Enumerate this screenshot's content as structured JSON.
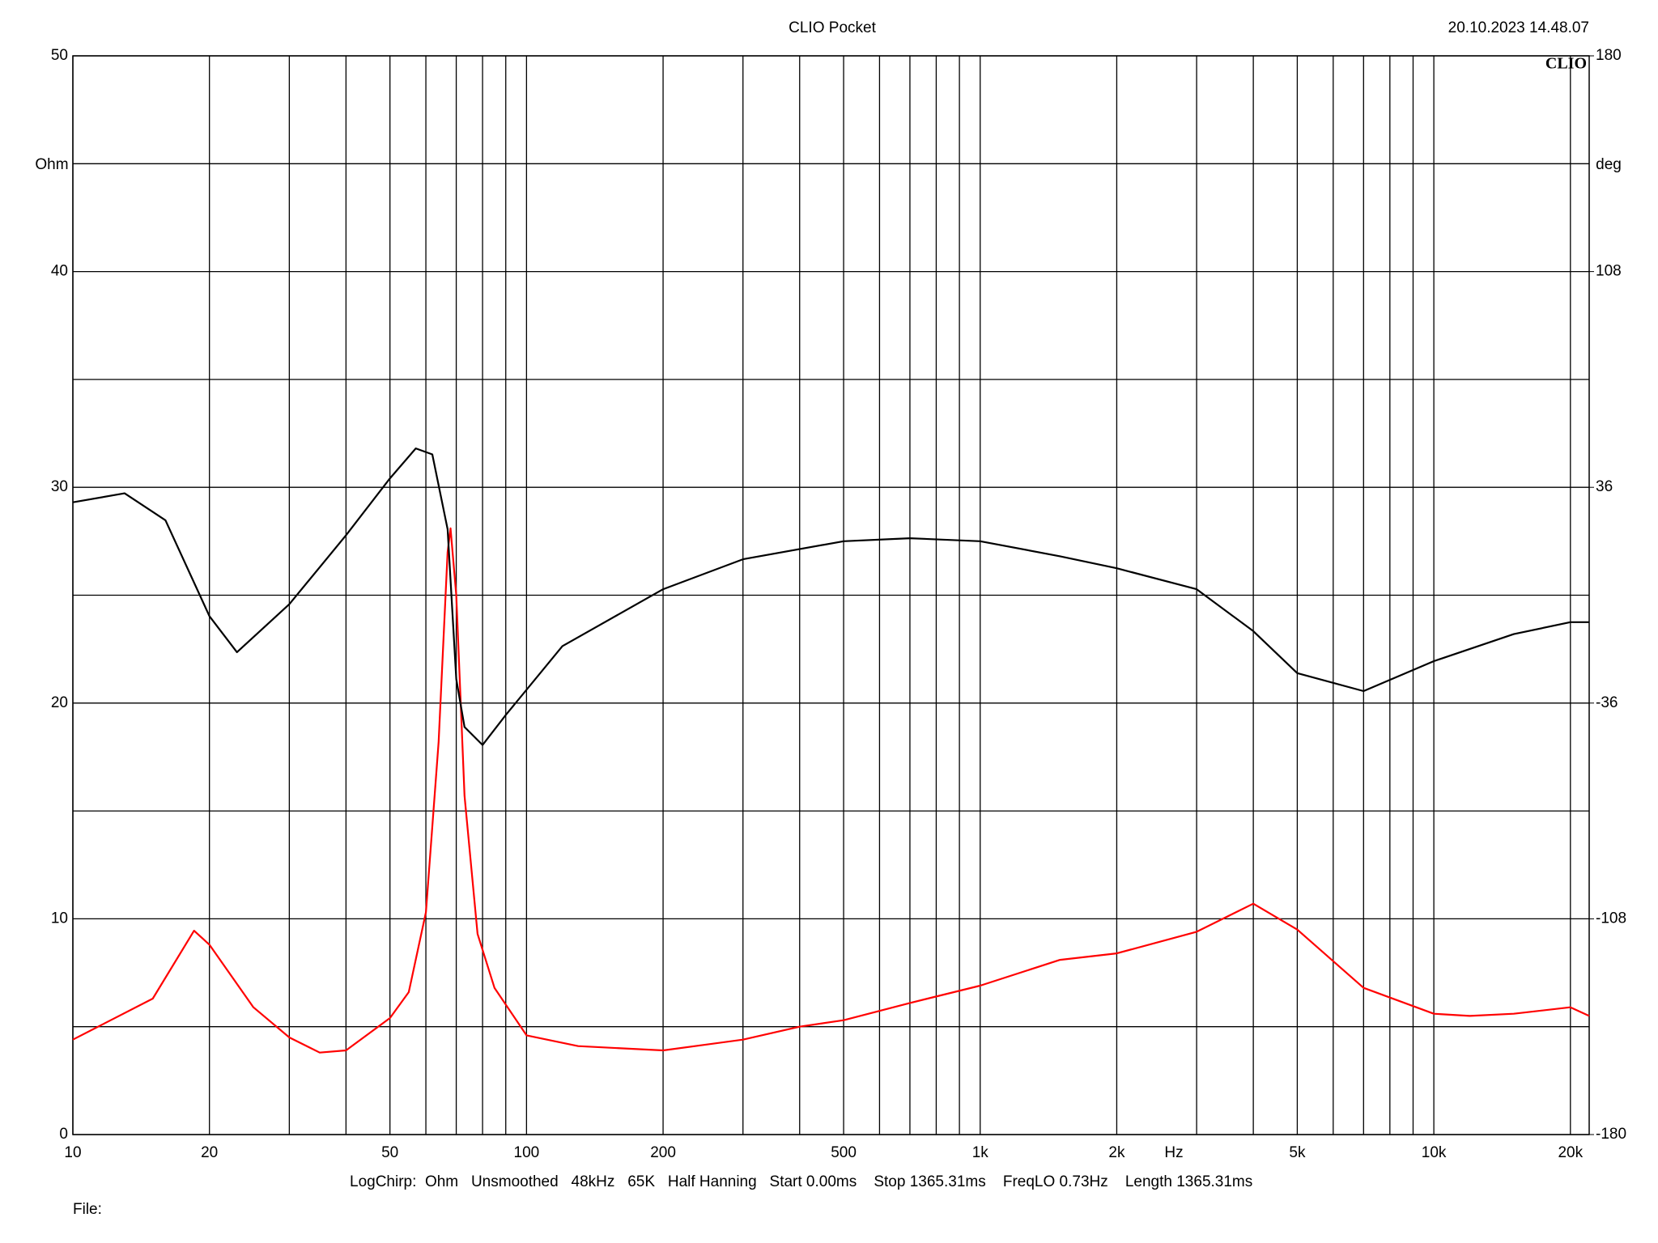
{
  "chart_data": {
    "type": "line",
    "title": "CLIO Pocket",
    "timestamp": "20.10.2023 14.48.07",
    "logo": "CLIO",
    "y_label": "Ohm",
    "y2_label": "deg",
    "x_label": "Hz",
    "footer": "LogChirp:  Ohm   Unsmoothed   48kHz   65K   Half Hanning   Start 0.00ms    Stop 1365.31ms    FreqLO 0.73Hz    Length 1365.31ms",
    "file_label": "File:",
    "xscale": "log",
    "xlim": [
      10,
      22000
    ],
    "xticks": [
      10,
      20,
      50,
      100,
      200,
      500,
      {
        "value": 1000,
        "label": "1k"
      },
      {
        "value": 2000,
        "label": "2k"
      },
      {
        "value": 5000,
        "label": "5k"
      },
      {
        "value": 10000,
        "label": "10k"
      },
      {
        "value": 20000,
        "label": "20k"
      }
    ],
    "xgrid": [
      30,
      40,
      60,
      70,
      80,
      90,
      300,
      400,
      600,
      700,
      800,
      900,
      3000,
      4000,
      6000,
      7000,
      8000,
      9000
    ],
    "ylim": [
      0,
      50
    ],
    "yticks": [
      0,
      10,
      20,
      30,
      40,
      50
    ],
    "ygrid": [
      5,
      15,
      25,
      35,
      45
    ],
    "y2lim": [
      -180,
      180
    ],
    "y2ticks": [
      -180,
      -108,
      -36,
      36,
      108,
      180
    ],
    "grid": true,
    "series": [
      {
        "color": "#ff0000",
        "axis": "y",
        "x": [
          10,
          15,
          18.5,
          20,
          25,
          30,
          35,
          40,
          50,
          55,
          60,
          64,
          67,
          68,
          70,
          73,
          78,
          85,
          100,
          130,
          200,
          300,
          400,
          500,
          700,
          1000,
          1500,
          2000,
          3000,
          4000,
          5000,
          7000,
          10000,
          12000,
          15000,
          20000,
          22000
        ],
        "values": [
          4.4,
          6.3,
          9.45,
          8.8,
          5.9,
          4.5,
          3.8,
          3.9,
          5.4,
          6.6,
          10.3,
          18.2,
          27,
          28.1,
          25,
          15.7,
          9.3,
          6.8,
          4.6,
          4.1,
          3.9,
          4.4,
          5,
          5.3,
          6.1,
          6.9,
          8.1,
          8.4,
          9.4,
          10.7,
          9.5,
          6.8,
          5.6,
          5.5,
          5.6,
          5.9,
          5.5
        ]
      },
      {
        "color": "#000000",
        "axis": "y2",
        "x": [
          10,
          13,
          16,
          20,
          23,
          30,
          40,
          50,
          57,
          62,
          67,
          70,
          73,
          80,
          90,
          120,
          200,
          300,
          500,
          700,
          1000,
          1500,
          2000,
          3000,
          4000,
          5000,
          7000,
          10000,
          15000,
          20000,
          22000
        ],
        "values": [
          31,
          34,
          25,
          -7,
          -19,
          -3,
          20,
          39,
          49,
          47,
          22,
          -28,
          -44,
          -50,
          -40,
          -17,
          2,
          12,
          18,
          19,
          18,
          13,
          9,
          2,
          -12,
          -26,
          -32,
          -22,
          -13,
          -9,
          -9
        ]
      }
    ]
  }
}
